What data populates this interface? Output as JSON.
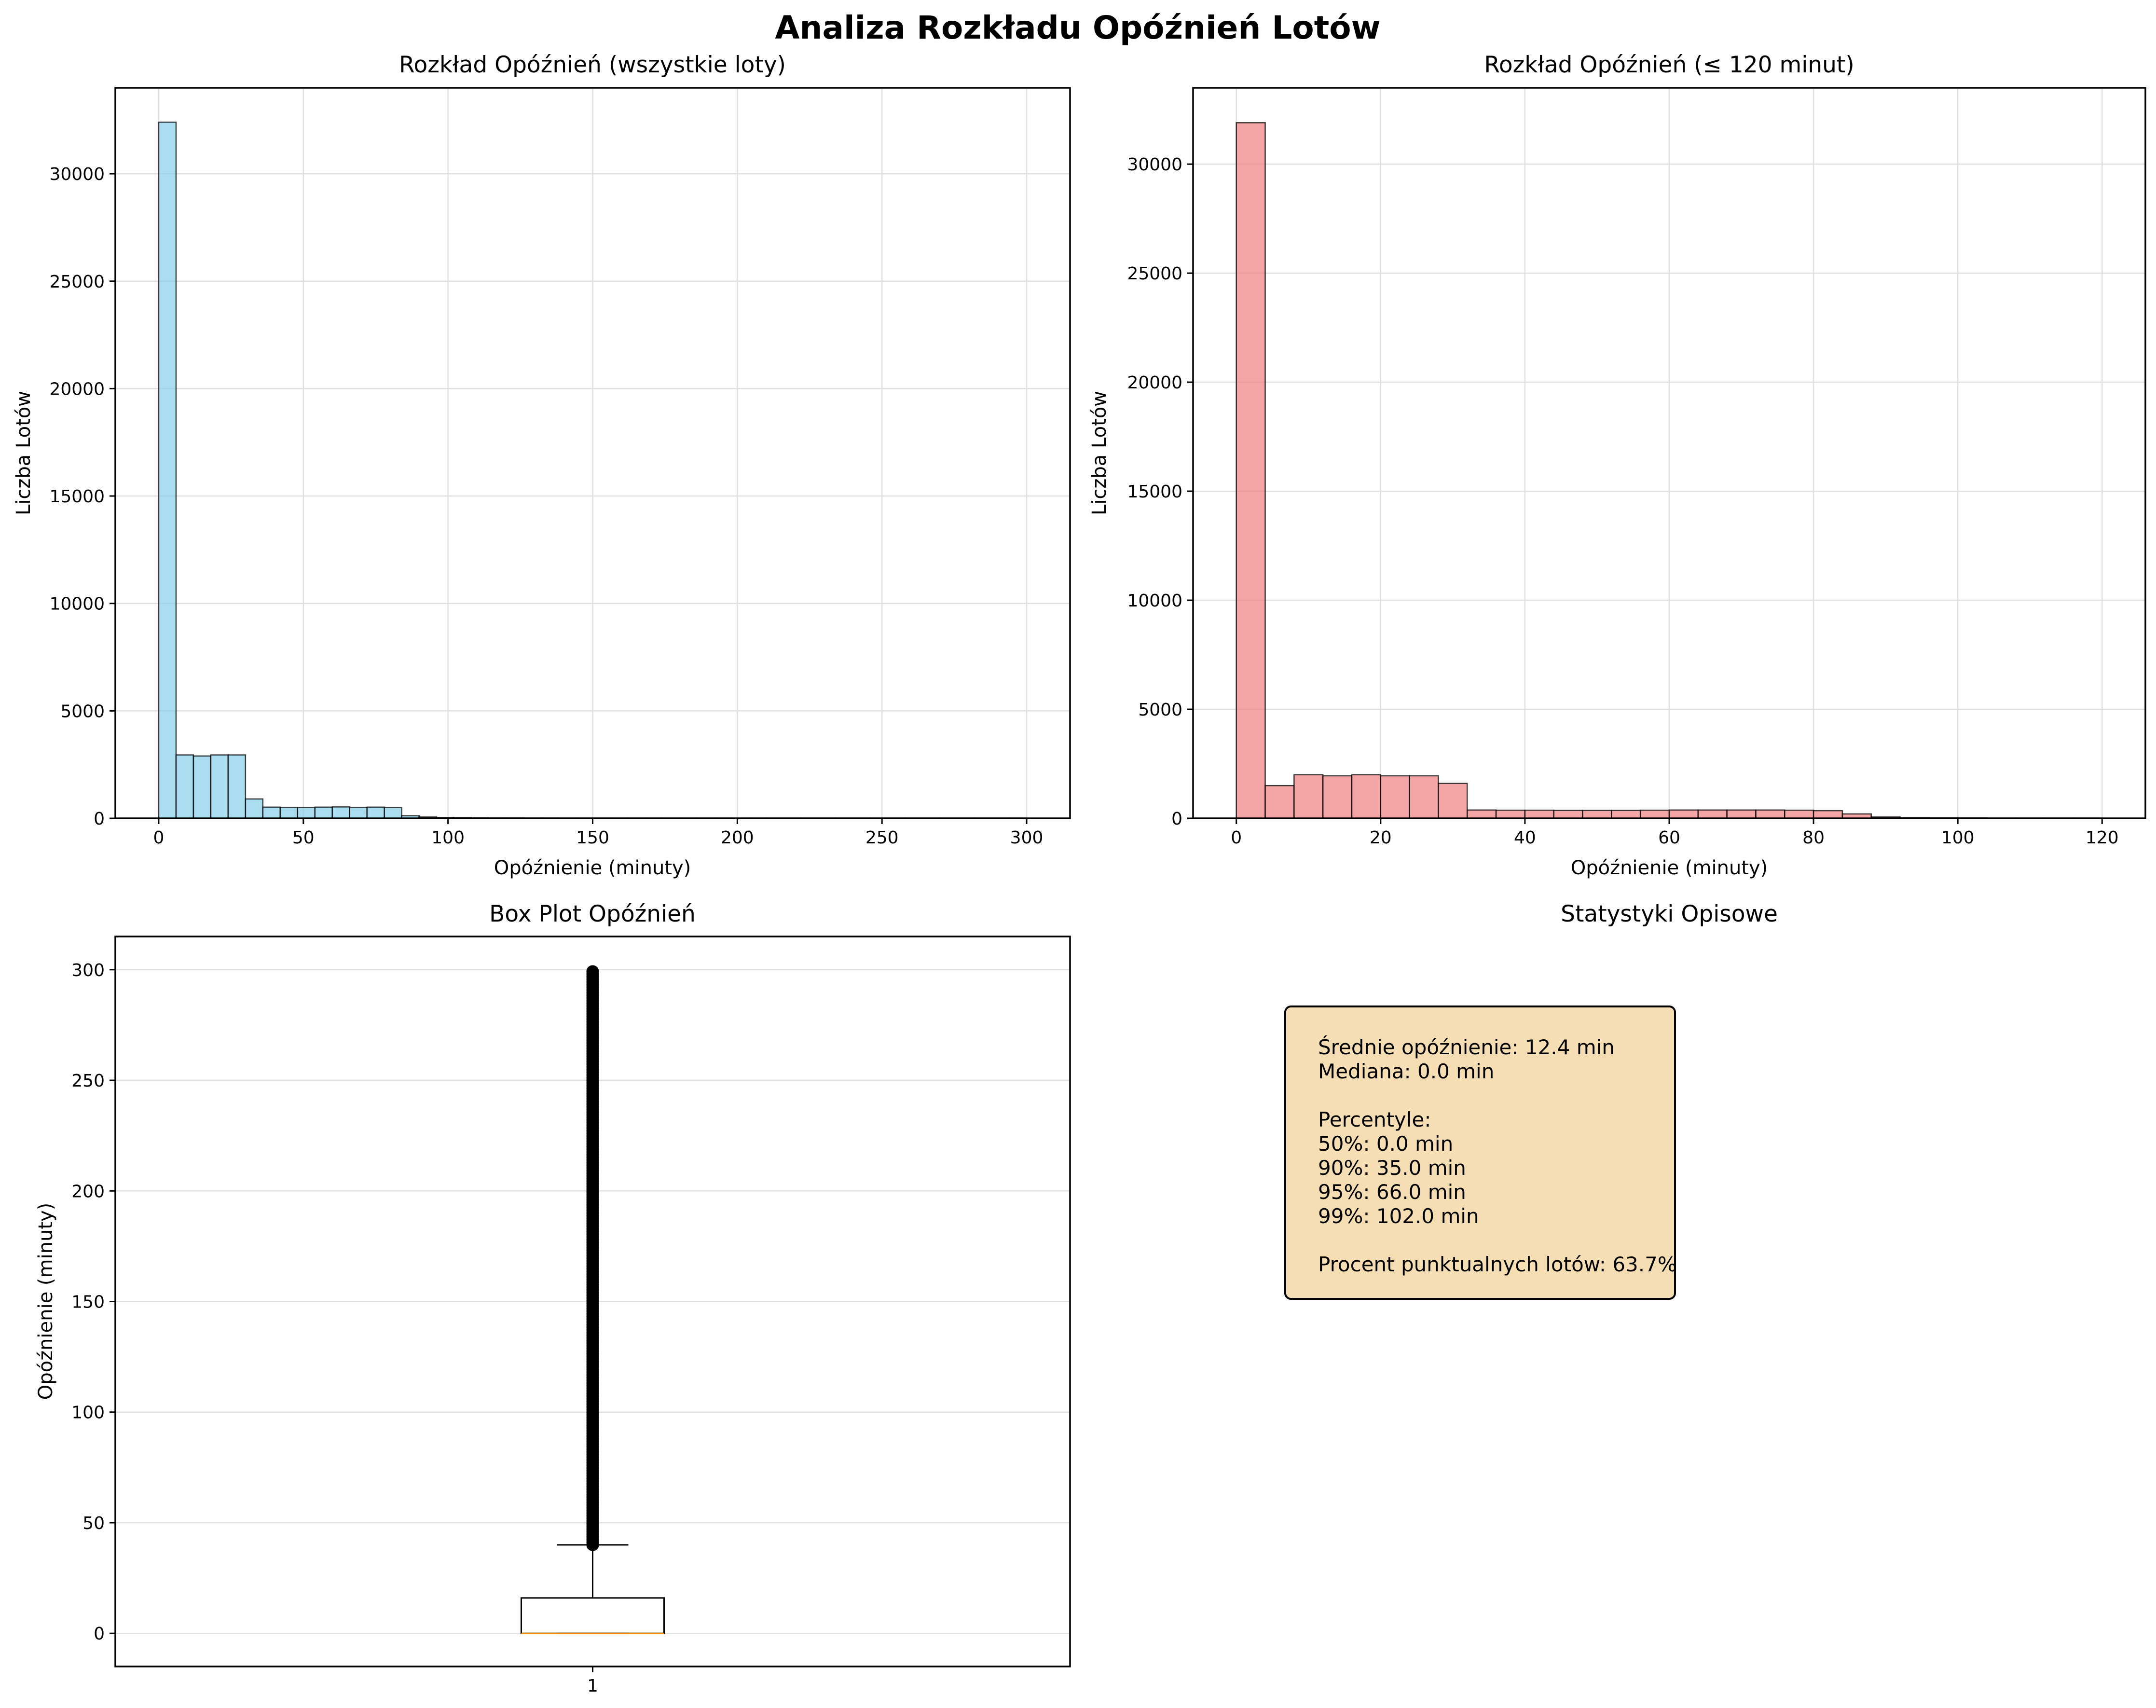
{
  "suptitle": "Analiza Rozkładu Opóźnień Lotów",
  "colors": {
    "hist_all": "#87ceeb",
    "hist_le120": "#f08080",
    "box_median": "#ff8c00",
    "stats_bg": "#f5deb3",
    "grid": "#e0e0e0"
  },
  "chart_data": [
    {
      "type": "bar",
      "title": "Rozkład Opóźnień (wszystkie loty)",
      "xlabel": "Opóźnienie (minuty)",
      "ylabel": "Liczba Lotów",
      "xlim": [
        -15,
        315
      ],
      "ylim": [
        0,
        34000
      ],
      "xticks": [
        0,
        50,
        100,
        150,
        200,
        250,
        300
      ],
      "yticks": [
        0,
        5000,
        10000,
        15000,
        20000,
        25000,
        30000
      ],
      "grid": true,
      "bin_start": 0,
      "bin_width": 6,
      "values": [
        32400,
        2950,
        2900,
        2950,
        2950,
        900,
        520,
        510,
        500,
        520,
        530,
        510,
        520,
        500,
        120,
        60,
        40,
        30,
        20,
        15,
        15,
        12,
        12,
        10,
        10,
        10,
        10,
        10,
        10,
        10,
        10,
        10,
        10,
        10,
        10,
        10,
        10,
        10,
        10,
        10,
        10,
        10,
        10,
        10,
        10,
        10,
        10,
        10,
        10,
        10
      ]
    },
    {
      "type": "bar",
      "title": "Rozkład Opóźnień (≤ 120 minut)",
      "xlabel": "Opóźnienie (minuty)",
      "ylabel": "Liczba Lotów",
      "xlim": [
        -6,
        126
      ],
      "ylim": [
        0,
        33500
      ],
      "xticks": [
        0,
        20,
        40,
        60,
        80,
        100,
        120
      ],
      "yticks": [
        0,
        5000,
        10000,
        15000,
        20000,
        25000,
        30000
      ],
      "grid": true,
      "bin_start": 0,
      "bin_width": 4,
      "values": [
        31900,
        1500,
        2000,
        1950,
        2000,
        1950,
        1950,
        1600,
        380,
        370,
        370,
        360,
        360,
        360,
        370,
        380,
        380,
        380,
        380,
        370,
        350,
        200,
        60,
        30,
        20,
        15,
        10,
        10,
        10,
        10
      ]
    },
    {
      "type": "box",
      "title": "Box Plot Opóźnień",
      "ylabel": "Opóźnienie (minuty)",
      "xtick_label": "1",
      "ylim": [
        -15,
        315
      ],
      "yticks": [
        0,
        50,
        100,
        150,
        200,
        250,
        300
      ],
      "grid": true,
      "q1": 0,
      "median": 0,
      "q3": 16,
      "whisker_low": 0,
      "whisker_high": 40,
      "outliers_range": [
        40,
        300
      ]
    }
  ],
  "stats": {
    "title": "Statystyki Opisowe",
    "mean_line": "Średnie opóźnienie: 12.4 min",
    "median_line": "Mediana: 0.0 min",
    "percentiles_header": "Percentyle:",
    "p50": "50%: 0.0 min",
    "p90": "90%: 35.0 min",
    "p95": "95%: 66.0 min",
    "p99": "99%: 102.0 min",
    "punctual": "Procent punktualnych lotów: 63.7%"
  }
}
